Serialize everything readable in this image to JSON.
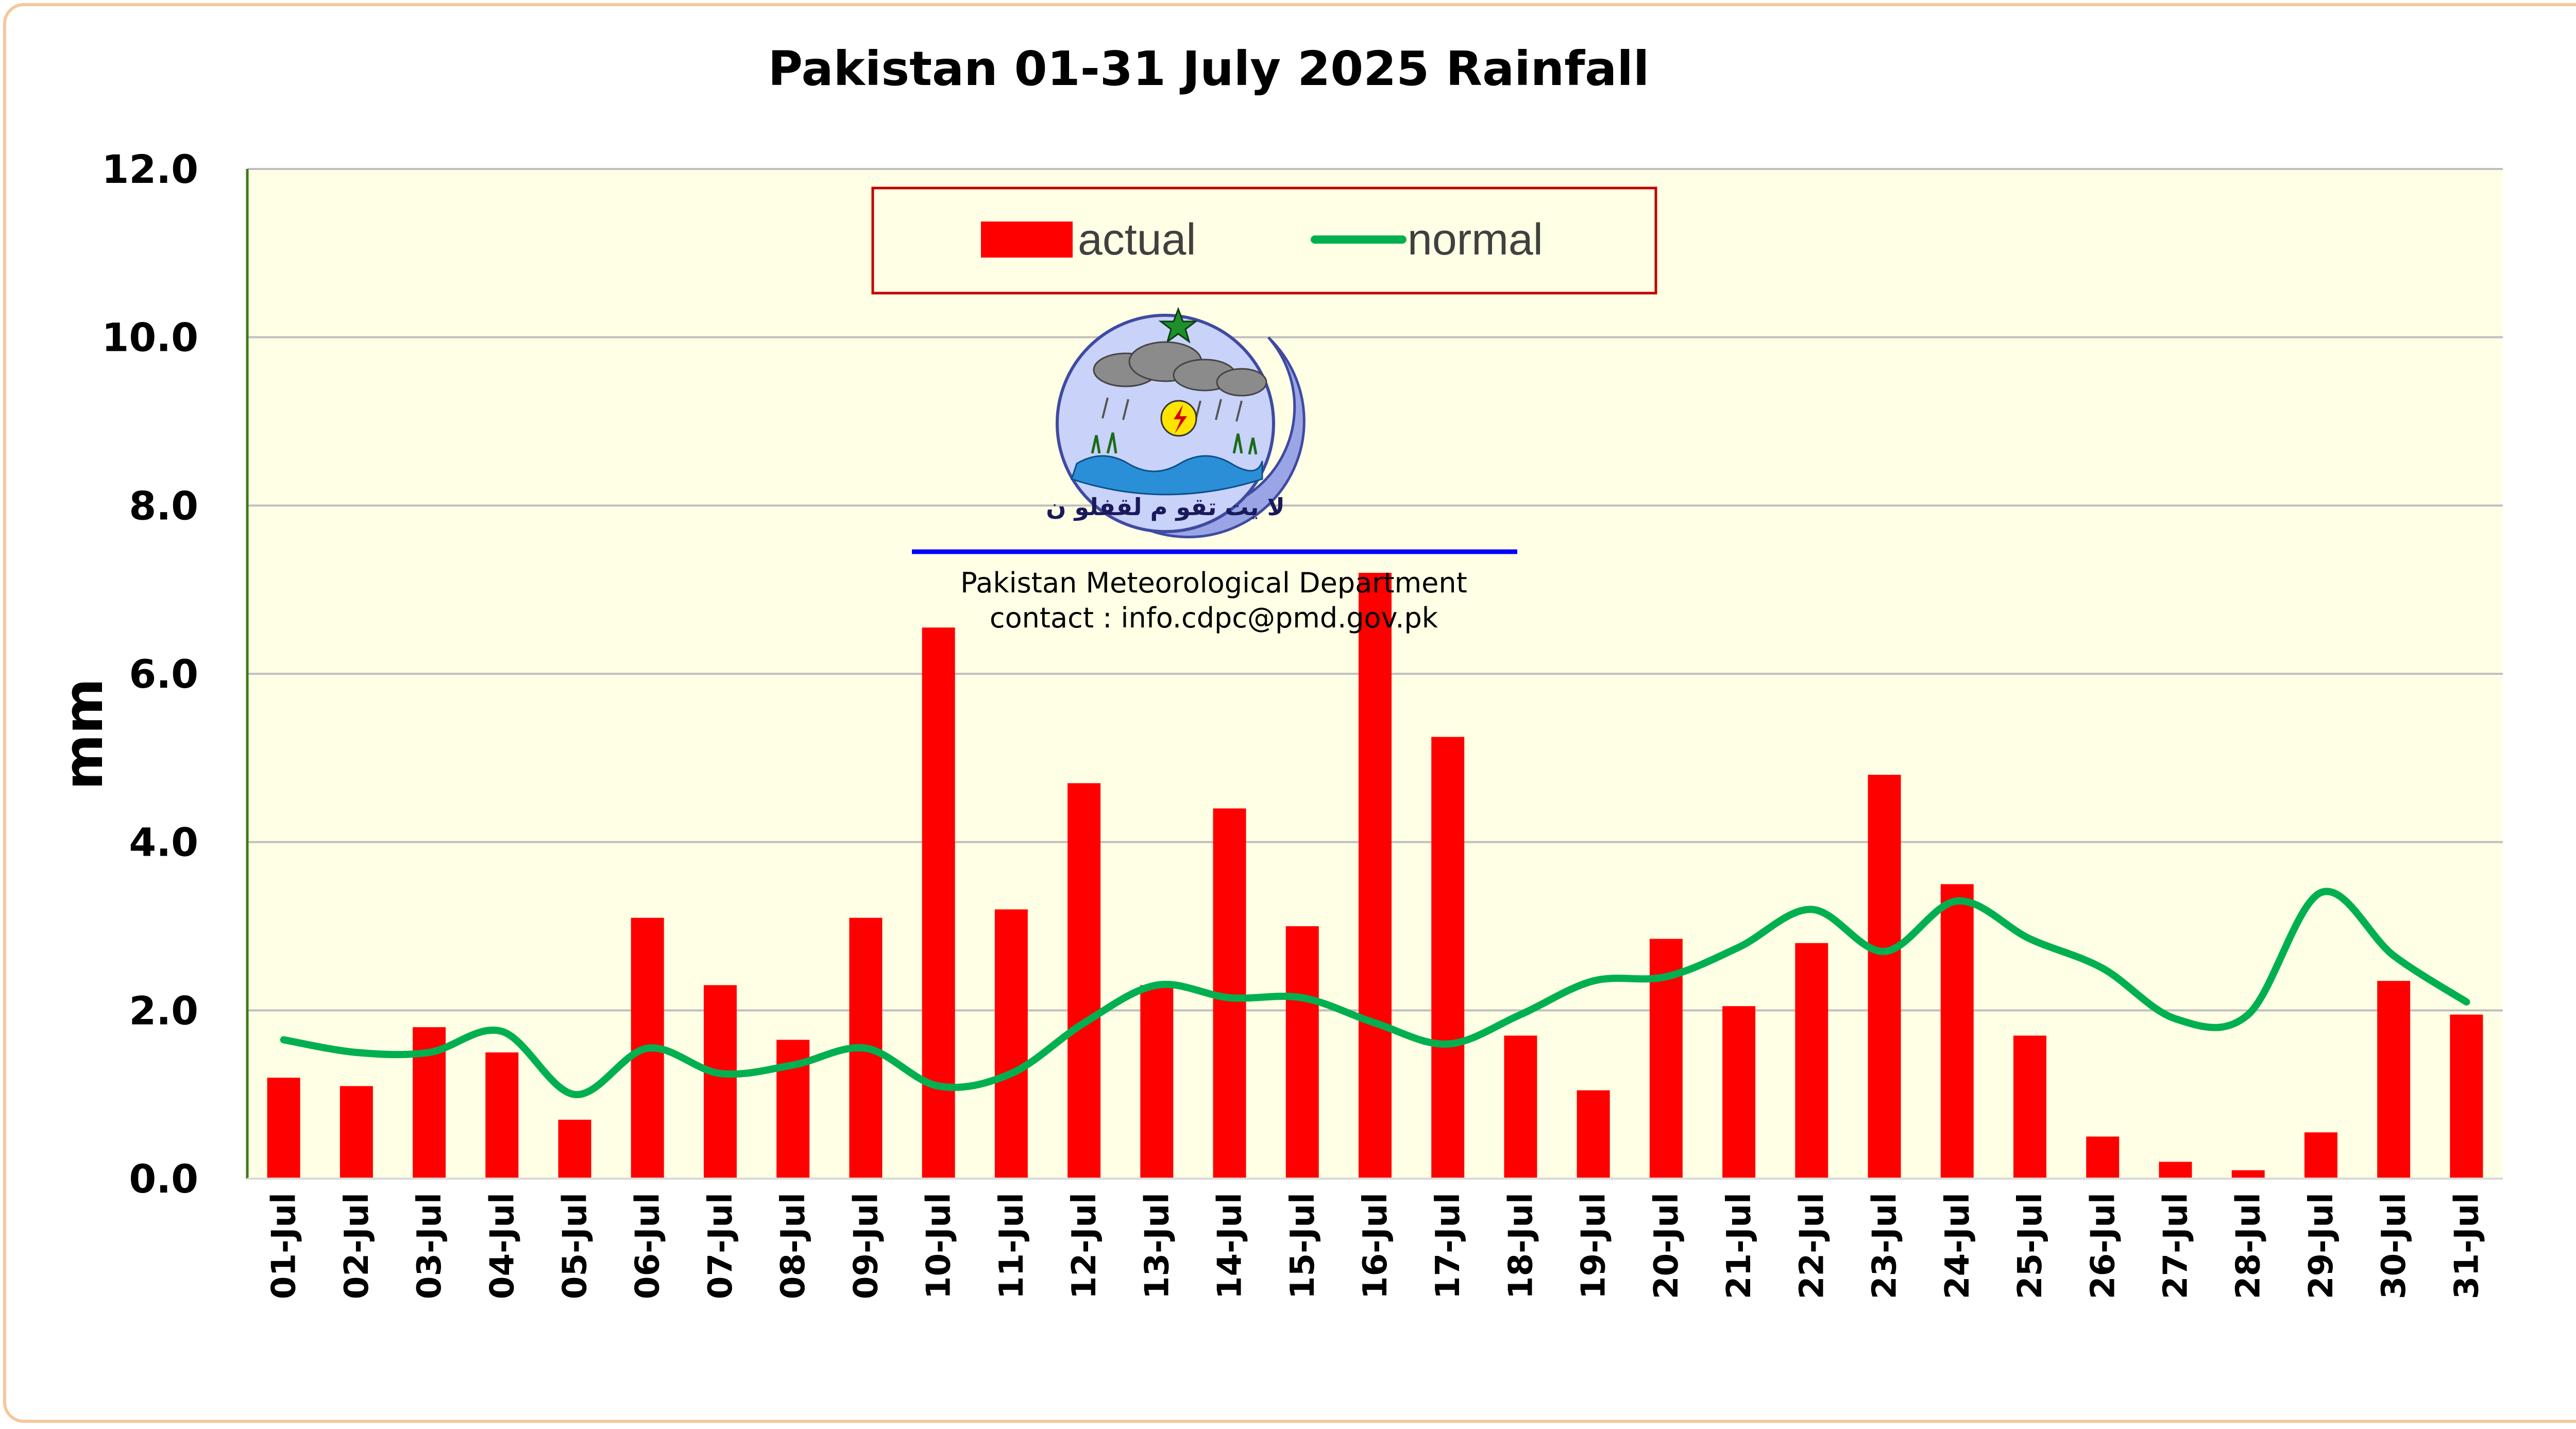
{
  "chart_data": {
    "type": "bar",
    "title": "Pakistan 01-31 July 2025 Rainfall",
    "xlabel": "",
    "ylabel": "mm",
    "ylim": [
      0,
      12
    ],
    "yticks": [
      "0.0",
      "2.0",
      "4.0",
      "6.0",
      "8.0",
      "10.0",
      "12.0"
    ],
    "grid": true,
    "legend_position": "top-center",
    "categories": [
      "01-Jul",
      "02-Jul",
      "03-Jul",
      "04-Jul",
      "05-Jul",
      "06-Jul",
      "07-Jul",
      "08-Jul",
      "09-Jul",
      "10-Jul",
      "11-Jul",
      "12-Jul",
      "13-Jul",
      "14-Jul",
      "15-Jul",
      "16-Jul",
      "17-Jul",
      "18-Jul",
      "19-Jul",
      "20-Jul",
      "21-Jul",
      "22-Jul",
      "23-Jul",
      "24-Jul",
      "25-Jul",
      "26-Jul",
      "27-Jul",
      "28-Jul",
      "29-Jul",
      "30-Jul",
      "31-Jul"
    ],
    "series": [
      {
        "name": "actual",
        "type": "bar",
        "color": "#ff0000",
        "values": [
          1.2,
          1.1,
          1.8,
          1.5,
          0.7,
          3.1,
          2.3,
          1.65,
          3.1,
          6.55,
          3.2,
          4.7,
          2.3,
          4.4,
          3.0,
          7.2,
          5.25,
          1.7,
          1.05,
          2.85,
          2.05,
          2.8,
          4.8,
          3.5,
          1.7,
          0.5,
          0.2,
          0.1,
          0.55,
          2.35,
          1.95
        ]
      },
      {
        "name": "normal",
        "type": "line",
        "color": "#00b050",
        "values": [
          1.65,
          1.5,
          1.5,
          1.75,
          1.0,
          1.55,
          1.25,
          1.35,
          1.55,
          1.1,
          1.25,
          1.85,
          2.3,
          2.15,
          2.15,
          1.85,
          1.6,
          1.95,
          2.35,
          2.4,
          2.75,
          3.2,
          2.7,
          3.3,
          2.85,
          2.5,
          1.9,
          1.95,
          3.4,
          2.65,
          2.1
        ]
      }
    ]
  },
  "logo": {
    "name": "Pakistan Meteorological Department emblem",
    "motto": "لا يت تقو م لقفلو ن",
    "caption_line1": "Pakistan Meteorological Department",
    "caption_line2": "contact : info.cdpc@pmd.gov.pk"
  },
  "colors": {
    "plot_background": "#ffffe5",
    "gridline": "#bfbfbf",
    "axis": "#3a7a1a",
    "legend_border": "#c00000",
    "frame_border": "#f4c89a",
    "logo_rule": "#0000ff"
  }
}
